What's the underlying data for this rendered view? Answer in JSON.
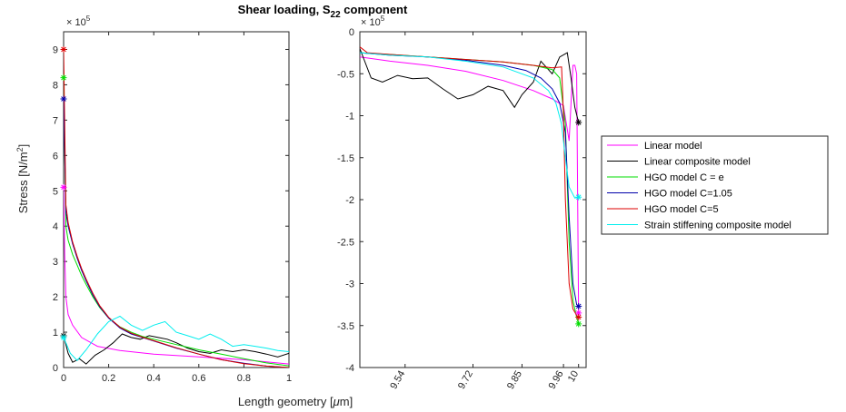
{
  "title": {
    "main": "Shear loading, S",
    "sub": "22",
    "suffix": " component"
  },
  "ylabel": {
    "main": "Stress [N/m",
    "sup": "2",
    "suffix": "]"
  },
  "xlabel": {
    "main": "Length geometry [",
    "mu": "μ",
    "suffix": "m]"
  },
  "exponent_label": {
    "base": "× 10",
    "exp": "5"
  },
  "legend": [
    {
      "label": "Linear model",
      "color": "#ff00ff"
    },
    {
      "label": "Linear composite model",
      "color": "#000000"
    },
    {
      "label": "HGO model C = e",
      "color": "#00dd00"
    },
    {
      "label": "HGO model C=1.05",
      "color": "#0000aa"
    },
    {
      "label": "HGO model C=5",
      "color": "#dd0000"
    },
    {
      "label": "Strain stiffening composite model",
      "color": "#00eeee"
    }
  ],
  "chart_data": [
    {
      "type": "line",
      "ylabel": "Stress [N/m2]",
      "xlim": [
        0,
        1
      ],
      "ylim": [
        0,
        9.5
      ],
      "y_scale_note": "× 10^5",
      "xticks": [
        "0",
        "0.2",
        "0.4",
        "0.6",
        "0.8",
        "1"
      ],
      "yticks": [
        "0",
        "1",
        "2",
        "3",
        "4",
        "5",
        "6",
        "7",
        "8",
        "9"
      ],
      "series": [
        {
          "name": "Linear model",
          "color": "#ff00ff",
          "x": [
            0,
            0.005,
            0.01,
            0.02,
            0.04,
            0.08,
            0.15,
            0.25,
            0.4,
            0.6,
            0.8,
            1.0
          ],
          "y": [
            5.1,
            3.2,
            2.0,
            1.5,
            1.2,
            0.85,
            0.6,
            0.48,
            0.38,
            0.3,
            0.22,
            0.1
          ],
          "marker": {
            "x": 0,
            "y": 5.1
          }
        },
        {
          "name": "Linear composite model",
          "color": "#000000",
          "x": [
            0,
            0.02,
            0.04,
            0.07,
            0.1,
            0.14,
            0.18,
            0.22,
            0.26,
            0.3,
            0.34,
            0.38,
            0.42,
            0.46,
            0.5,
            0.55,
            0.6,
            0.65,
            0.7,
            0.75,
            0.8,
            0.85,
            0.9,
            0.95,
            1.0
          ],
          "y": [
            0.9,
            0.4,
            0.15,
            0.25,
            0.1,
            0.35,
            0.5,
            0.7,
            0.95,
            0.85,
            0.8,
            0.9,
            0.85,
            0.8,
            0.7,
            0.55,
            0.45,
            0.4,
            0.5,
            0.45,
            0.5,
            0.45,
            0.38,
            0.3,
            0.4
          ],
          "marker": {
            "x": 0,
            "y": 0.9
          }
        },
        {
          "name": "HGO model C = e",
          "color": "#00dd00",
          "x": [
            0,
            0.01,
            0.02,
            0.04,
            0.06,
            0.08,
            0.1,
            0.13,
            0.16,
            0.2,
            0.25,
            0.3,
            0.35,
            0.4,
            0.5,
            0.6,
            0.7,
            0.8,
            0.9,
            1.0
          ],
          "y": [
            8.2,
            4.0,
            3.6,
            3.2,
            2.9,
            2.6,
            2.35,
            2.0,
            1.7,
            1.4,
            1.15,
            1.0,
            0.88,
            0.8,
            0.65,
            0.5,
            0.38,
            0.25,
            0.13,
            0.05
          ],
          "marker": {
            "x": 0,
            "y": 8.2
          }
        },
        {
          "name": "HGO model C=1.05",
          "color": "#0000aa",
          "x": [
            0,
            0.01,
            0.02,
            0.04,
            0.06,
            0.08,
            0.1,
            0.13,
            0.16,
            0.2,
            0.25,
            0.3,
            0.35,
            0.4,
            0.5,
            0.6,
            0.7,
            0.8,
            0.9,
            1.0
          ],
          "y": [
            7.6,
            4.4,
            4.0,
            3.5,
            3.1,
            2.75,
            2.45,
            2.05,
            1.72,
            1.4,
            1.12,
            0.95,
            0.85,
            0.75,
            0.55,
            0.38,
            0.22,
            0.12,
            0.04,
            0.0
          ],
          "marker": {
            "x": 0,
            "y": 7.6
          }
        },
        {
          "name": "HGO model C=5",
          "color": "#dd0000",
          "x": [
            0,
            0.01,
            0.02,
            0.04,
            0.06,
            0.08,
            0.1,
            0.13,
            0.16,
            0.2,
            0.25,
            0.3,
            0.35,
            0.4,
            0.5,
            0.6,
            0.7,
            0.8,
            0.9,
            1.0
          ],
          "y": [
            9.0,
            4.6,
            4.1,
            3.55,
            3.15,
            2.8,
            2.5,
            2.1,
            1.75,
            1.42,
            1.14,
            0.97,
            0.86,
            0.76,
            0.56,
            0.38,
            0.22,
            0.11,
            0.04,
            0.0
          ],
          "marker": {
            "x": 0,
            "y": 9.0
          }
        },
        {
          "name": "Strain stiffening composite model",
          "color": "#00eeee",
          "x": [
            0,
            0.01,
            0.03,
            0.06,
            0.1,
            0.15,
            0.2,
            0.25,
            0.3,
            0.35,
            0.4,
            0.45,
            0.5,
            0.55,
            0.6,
            0.65,
            0.7,
            0.75,
            0.8,
            0.85,
            0.9,
            0.95,
            1.0
          ],
          "y": [
            0.85,
            0.7,
            0.4,
            0.2,
            0.5,
            0.95,
            1.3,
            1.45,
            1.2,
            1.05,
            1.2,
            1.3,
            1.0,
            0.9,
            0.8,
            0.95,
            0.8,
            0.6,
            0.65,
            0.6,
            0.55,
            0.48,
            0.45
          ],
          "marker": {
            "x": 0,
            "y": 0.85
          }
        }
      ]
    },
    {
      "type": "line",
      "xlim": [
        9.42,
        10.02
      ],
      "ylim": [
        -4,
        0
      ],
      "y_scale_note": "× 10^5",
      "xticks": [
        9.54,
        9.72,
        9.85,
        9.96,
        10
      ],
      "xtick_labels": [
        "9.54",
        "9.72",
        "9.85",
        "9.96",
        "10"
      ],
      "yticks": [
        "0",
        "-0.5",
        "-1",
        "-1.5",
        "-2",
        "-2.5",
        "-3",
        "-3.5",
        "-4"
      ],
      "series": [
        {
          "name": "Linear model",
          "color": "#ff00ff",
          "x": [
            9.42,
            9.5,
            9.6,
            9.7,
            9.8,
            9.88,
            9.93,
            9.96,
            9.975,
            9.985,
            9.99,
            9.995,
            10.0
          ],
          "y": [
            -0.3,
            -0.35,
            -0.4,
            -0.47,
            -0.58,
            -0.7,
            -0.8,
            -0.88,
            -1.3,
            -0.4,
            -0.4,
            -0.5,
            -3.35
          ],
          "marker": {
            "x": 10.0,
            "y": -3.35
          }
        },
        {
          "name": "Linear composite model",
          "color": "#000000",
          "x": [
            9.42,
            9.45,
            9.48,
            9.52,
            9.56,
            9.6,
            9.64,
            9.68,
            9.72,
            9.76,
            9.8,
            9.83,
            9.85,
            9.88,
            9.9,
            9.93,
            9.95,
            9.97,
            9.98,
            9.99,
            10.0
          ],
          "y": [
            -0.2,
            -0.55,
            -0.6,
            -0.52,
            -0.56,
            -0.55,
            -0.68,
            -0.8,
            -0.75,
            -0.65,
            -0.7,
            -0.9,
            -0.75,
            -0.6,
            -0.35,
            -0.5,
            -0.3,
            -0.25,
            -0.55,
            -0.9,
            -1.08
          ],
          "marker": {
            "x": 10.0,
            "y": -1.08
          }
        },
        {
          "name": "HGO model C = e",
          "color": "#00dd00",
          "x": [
            9.42,
            9.5,
            9.6,
            9.7,
            9.8,
            9.88,
            9.93,
            9.95,
            9.965,
            9.975,
            9.985,
            9.995,
            10.0
          ],
          "y": [
            -0.25,
            -0.27,
            -0.3,
            -0.33,
            -0.36,
            -0.4,
            -0.45,
            -0.55,
            -1.1,
            -2.5,
            -3.2,
            -3.4,
            -3.48
          ],
          "marker": {
            "x": 10.0,
            "y": -3.48
          }
        },
        {
          "name": "HGO model C=1.05",
          "color": "#0000aa",
          "x": [
            9.42,
            9.5,
            9.6,
            9.7,
            9.8,
            9.86,
            9.9,
            9.93,
            9.95,
            9.965,
            9.975,
            9.985,
            9.995,
            10.0
          ],
          "y": [
            -0.25,
            -0.28,
            -0.3,
            -0.34,
            -0.4,
            -0.46,
            -0.55,
            -0.68,
            -0.85,
            -1.2,
            -2.2,
            -3.0,
            -3.25,
            -3.27
          ],
          "marker": {
            "x": 10.0,
            "y": -3.27
          }
        },
        {
          "name": "HGO model C=5",
          "color": "#dd0000",
          "x": [
            9.42,
            9.44,
            9.5,
            9.6,
            9.7,
            9.8,
            9.88,
            9.93,
            9.955,
            9.96,
            9.965,
            9.975,
            9.985,
            9.995,
            10.0
          ],
          "y": [
            -0.18,
            -0.25,
            -0.27,
            -0.3,
            -0.33,
            -0.36,
            -0.4,
            -0.43,
            -0.42,
            -1.0,
            -2.0,
            -3.0,
            -3.3,
            -3.38,
            -3.4
          ],
          "marker": {
            "x": 10.0,
            "y": -3.4
          }
        },
        {
          "name": "Strain stiffening composite model",
          "color": "#00eeee",
          "x": [
            9.42,
            9.5,
            9.6,
            9.7,
            9.8,
            9.88,
            9.92,
            9.94,
            9.955,
            9.965,
            9.975,
            9.99,
            10.0
          ],
          "y": [
            -0.25,
            -0.28,
            -0.3,
            -0.35,
            -0.42,
            -0.55,
            -0.7,
            -0.85,
            -1.1,
            -1.5,
            -1.85,
            -1.98,
            -1.97
          ],
          "marker": {
            "x": 10.0,
            "y": -1.97
          }
        }
      ]
    }
  ]
}
